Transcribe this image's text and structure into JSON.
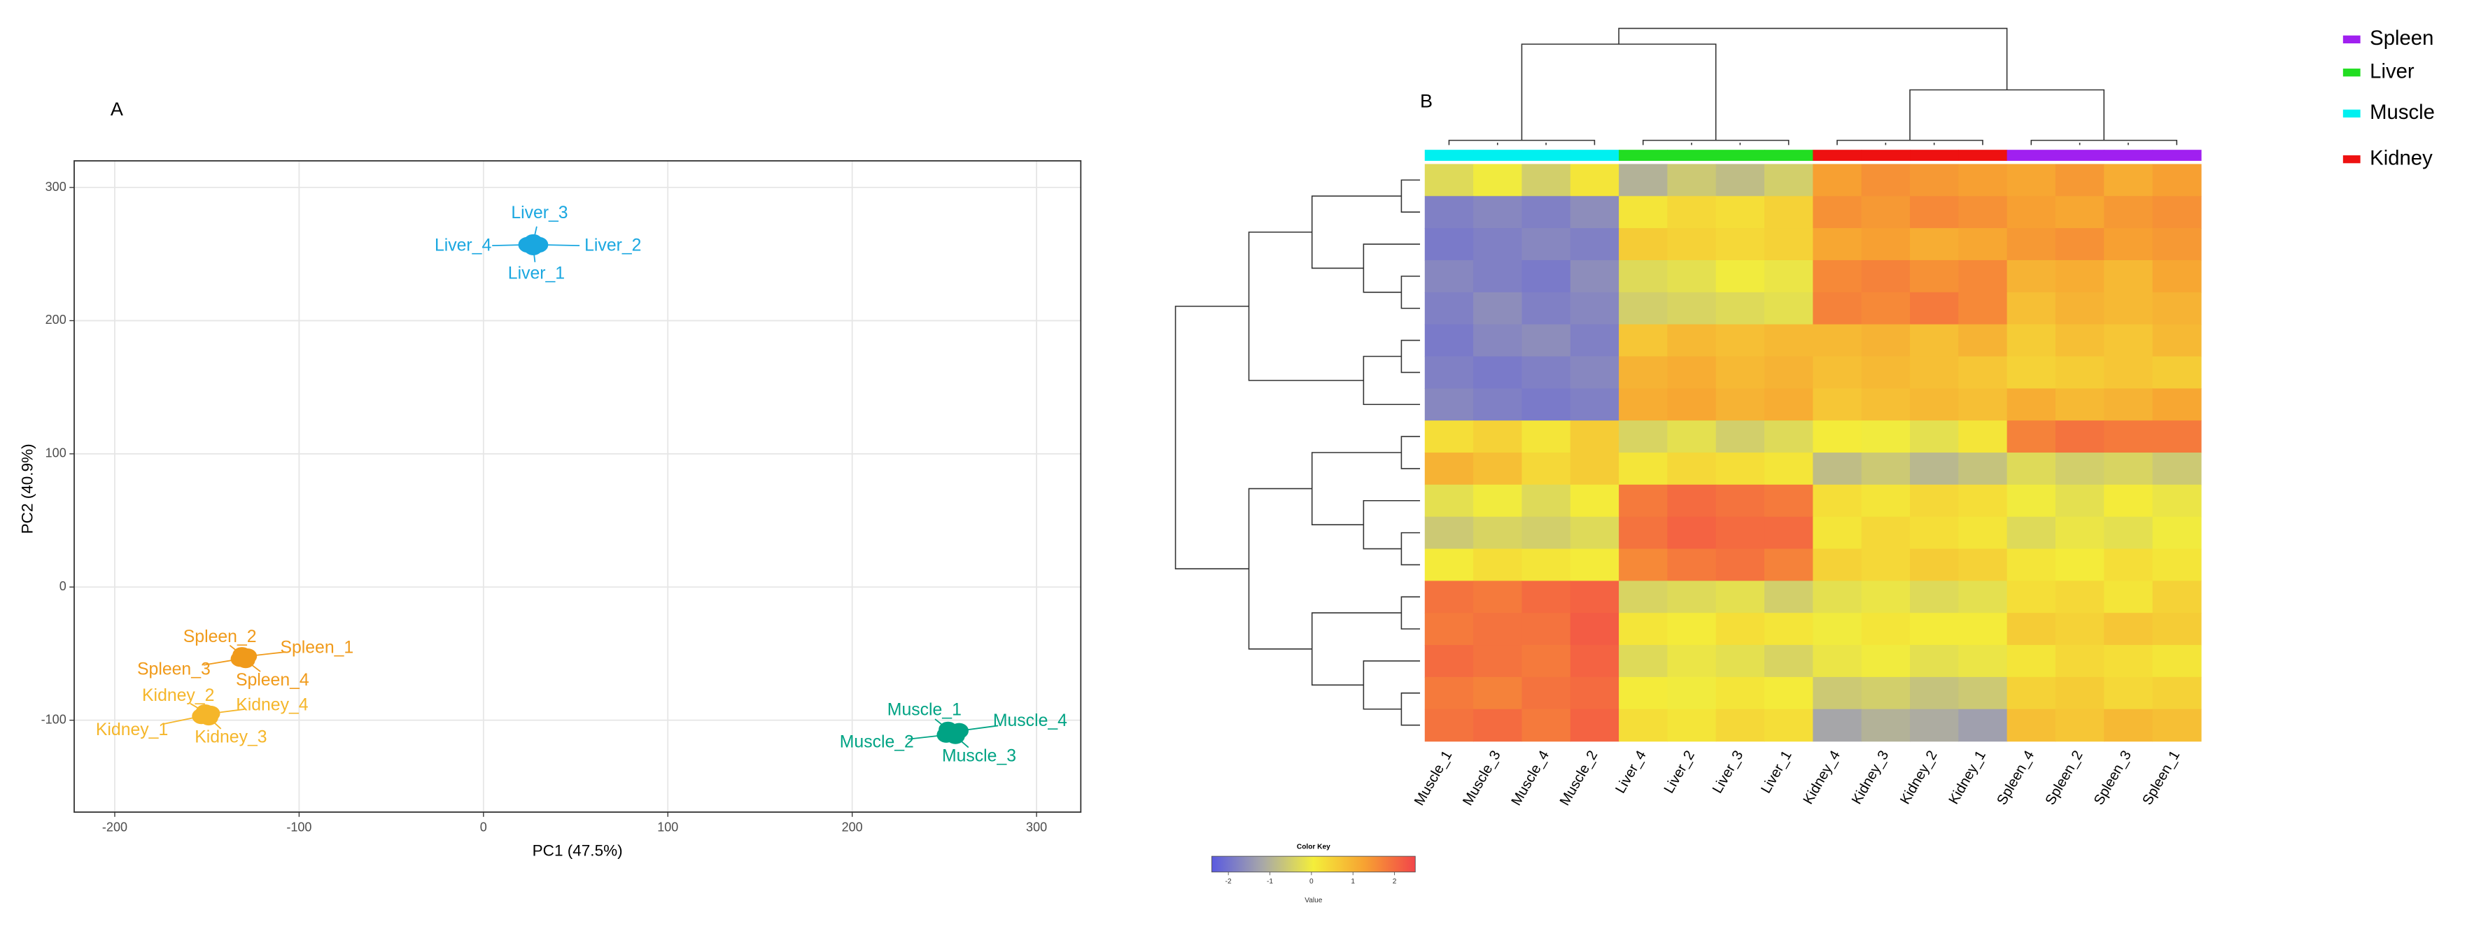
{
  "chart_data": [
    {
      "type": "scatter",
      "panel_label": "A",
      "xlabel": "PC1 (47.5%)",
      "ylabel": "PC2 (40.9%)",
      "xlim": [
        -222,
        324
      ],
      "ylim": [
        -169,
        320
      ],
      "xticks": [
        -200,
        -100,
        0,
        100,
        200,
        300
      ],
      "yticks": [
        -100,
        0,
        100,
        200,
        300
      ],
      "grid": true,
      "series": [
        {
          "color": "#1aa7e0",
          "labels": [
            "Liver_3",
            "Liver_4",
            "Liver_2",
            "Liver_1"
          ],
          "x": [
            27,
            24,
            30,
            27
          ],
          "values": [
            259,
            257,
            257,
            255
          ]
        },
        {
          "color": "#f09a1a",
          "labels": [
            "Spleen_2",
            "Spleen_1",
            "Spleen_3",
            "Spleen_4"
          ],
          "x": [
            -131,
            -128,
            -132,
            -129
          ],
          "values": [
            -51,
            -52,
            -54,
            -55
          ]
        },
        {
          "color": "#f5b62a",
          "labels": [
            "Kidney_2",
            "Kidney_4",
            "Kidney_1",
            "Kidney_3"
          ],
          "x": [
            -151,
            -148,
            -153,
            -149
          ],
          "values": [
            -94,
            -95,
            -97,
            -98
          ]
        },
        {
          "color": "#00a384",
          "labels": [
            "Muscle_1",
            "Muscle_4",
            "Muscle_2",
            "Muscle_3"
          ],
          "x": [
            252,
            258,
            251,
            256
          ],
          "values": [
            -107,
            -108,
            -111,
            -112
          ]
        }
      ]
    },
    {
      "type": "heatmap",
      "panel_label": "B",
      "categories": [
        "Muscle_1",
        "Muscle_3",
        "Muscle_4",
        "Muscle_2",
        "Liver_4",
        "Liver_2",
        "Liver_3",
        "Liver_1",
        "Kidney_4",
        "Kidney_3",
        "Kidney_2",
        "Kidney_1",
        "Spleen_4",
        "Spleen_2",
        "Spleen_3",
        "Spleen_1"
      ],
      "values": [
        [
          -0.3,
          0,
          -0.5,
          0.2,
          -1,
          -0.6,
          -0.8,
          -0.5,
          1.3,
          1.5,
          1.4,
          1.3,
          1.2,
          1.4,
          1.1,
          1.3
        ],
        [
          -1.8,
          -1.7,
          -1.8,
          -1.6,
          0.2,
          0.4,
          0.3,
          0.5,
          1.5,
          1.4,
          1.6,
          1.5,
          1.3,
          1.2,
          1.4,
          1.5
        ],
        [
          -1.9,
          -1.8,
          -1.7,
          -1.8,
          0.6,
          0.5,
          0.4,
          0.5,
          1.2,
          1.3,
          1.1,
          1.2,
          1.4,
          1.5,
          1.3,
          1.4
        ],
        [
          -1.7,
          -1.8,
          -1.9,
          -1.6,
          -0.3,
          -0.2,
          0,
          -0.1,
          1.6,
          1.7,
          1.5,
          1.6,
          1.0,
          1.1,
          0.9,
          1.2
        ],
        [
          -1.8,
          -1.6,
          -1.8,
          -1.7,
          -0.5,
          -0.4,
          -0.3,
          -0.2,
          1.7,
          1.6,
          1.8,
          1.6,
          0.8,
          1.0,
          0.9,
          1.0
        ],
        [
          -1.9,
          -1.7,
          -1.6,
          -1.8,
          0.7,
          0.9,
          0.8,
          0.9,
          0.9,
          1.0,
          0.8,
          1.0,
          0.6,
          0.8,
          0.7,
          0.9
        ],
        [
          -1.8,
          -1.9,
          -1.8,
          -1.7,
          1.0,
          1.1,
          0.9,
          1.0,
          0.8,
          0.9,
          0.8,
          0.7,
          0.5,
          0.6,
          0.7,
          0.6
        ],
        [
          -1.7,
          -1.8,
          -1.9,
          -1.8,
          1.1,
          1.2,
          1.0,
          1.1,
          0.7,
          0.8,
          0.9,
          0.8,
          1.1,
          0.9,
          1.0,
          1.2
        ],
        [
          0.3,
          0.5,
          0.2,
          0.6,
          -0.4,
          -0.2,
          -0.5,
          -0.3,
          0.1,
          0,
          -0.2,
          0.2,
          1.7,
          1.9,
          1.8,
          1.8
        ],
        [
          1.0,
          0.8,
          0.4,
          0.6,
          0.2,
          0.4,
          0.3,
          0.2,
          -0.8,
          -0.6,
          -0.9,
          -0.7,
          -0.3,
          -0.5,
          -0.4,
          -0.6
        ],
        [
          -0.2,
          0,
          -0.3,
          0.1,
          1.8,
          2.0,
          1.9,
          1.8,
          0.3,
          0.2,
          0.4,
          0.3,
          0,
          -0.2,
          0.1,
          -0.1
        ],
        [
          -0.6,
          -0.4,
          -0.5,
          -0.3,
          1.9,
          2.1,
          2.0,
          2.0,
          0.2,
          0.4,
          0.3,
          0.2,
          -0.3,
          -0.1,
          -0.2,
          0
        ],
        [
          0.1,
          0.3,
          0.2,
          0.1,
          1.6,
          1.8,
          1.9,
          1.7,
          0.5,
          0.4,
          0.6,
          0.5,
          0.2,
          0.1,
          0.3,
          0.2
        ],
        [
          1.9,
          1.8,
          2.0,
          2.1,
          -0.4,
          -0.3,
          -0.2,
          -0.5,
          -0.2,
          -0.1,
          -0.3,
          -0.2,
          0.3,
          0.4,
          0.2,
          0.5
        ],
        [
          1.8,
          1.9,
          1.9,
          2.2,
          0.2,
          0.1,
          0.3,
          0.2,
          0,
          0.2,
          0.1,
          0.1,
          0.6,
          0.5,
          0.7,
          0.6
        ],
        [
          2.0,
          1.9,
          1.8,
          2.1,
          -0.3,
          -0.1,
          -0.2,
          -0.4,
          -0.1,
          0,
          -0.2,
          -0.1,
          0.2,
          0.4,
          0.3,
          0.2
        ],
        [
          1.8,
          1.7,
          1.9,
          2.0,
          0.1,
          0,
          0.2,
          0.1,
          -0.6,
          -0.5,
          -0.7,
          -0.6,
          0.5,
          0.6,
          0.4,
          0.5
        ],
        [
          1.9,
          2.0,
          1.8,
          2.1,
          0.3,
          0.2,
          0.4,
          0.3,
          -1.2,
          -1.0,
          -1.1,
          -1.3,
          0.8,
          0.7,
          0.9,
          0.8
        ]
      ],
      "legend": [
        {
          "name": "Spleen",
          "color": "#a020f0"
        },
        {
          "name": "Liver",
          "color": "#22dd22"
        },
        {
          "name": "Muscle",
          "color": "#00f0f0"
        },
        {
          "name": "Kidney",
          "color": "#ee1111"
        }
      ],
      "colorbar": {
        "title": "Color Key",
        "label": "Value",
        "lim": [
          -2.4,
          2.5
        ],
        "ticks": [
          -2,
          -1,
          0,
          1,
          2
        ],
        "colors": [
          "#5a5ae0",
          "#a8a8a8",
          "#f4ee3a",
          "#f7a232",
          "#f2454a"
        ]
      }
    }
  ]
}
